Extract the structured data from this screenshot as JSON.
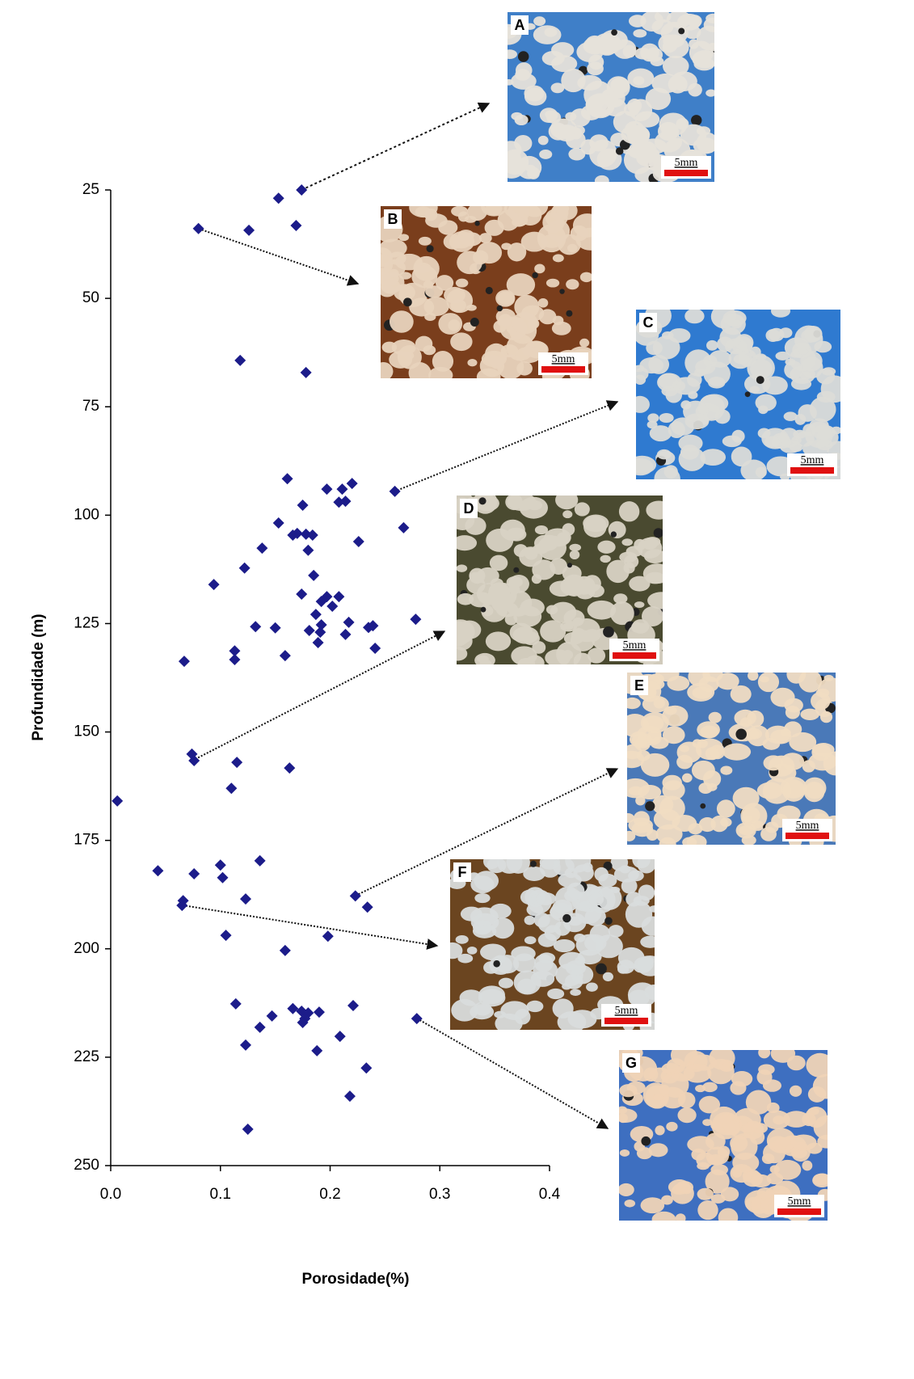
{
  "chart_data": {
    "type": "scatter",
    "x_label": "Porosidade(%)",
    "y_label": "Profundidade (m)",
    "color": "#1c1c8a",
    "y_inverted": true,
    "grid": false,
    "xlim": [
      0,
      0.4
    ],
    "xticks": [
      {
        "value": 0,
        "label": "0.0"
      },
      0.1,
      0.2,
      0.3,
      0.4
    ],
    "ylim": [
      25,
      250
    ],
    "yticks": [
      25,
      50,
      75,
      100,
      125,
      150,
      175,
      200,
      225,
      250
    ],
    "x": [
      0.174,
      0.153,
      0.169,
      0.126,
      0.08,
      0.118,
      0.178,
      0.161,
      0.197,
      0.22,
      0.211,
      0.259,
      0.214,
      0.208,
      0.175,
      0.153,
      0.267,
      0.17,
      0.178,
      0.166,
      0.184,
      0.226,
      0.138,
      0.18,
      0.122,
      0.185,
      0.094,
      0.174,
      0.197,
      0.208,
      0.192,
      0.202,
      0.187,
      0.217,
      0.235,
      0.239,
      0.278,
      0.132,
      0.15,
      0.192,
      0.181,
      0.191,
      0.214,
      0.189,
      0.113,
      0.159,
      0.113,
      0.241,
      0.067,
      0.074,
      0.076,
      0.115,
      0.163,
      0.11,
      0.006,
      0.136,
      0.1,
      0.043,
      0.076,
      0.102,
      0.223,
      0.123,
      0.066,
      0.065,
      0.234,
      0.105,
      0.198,
      0.159,
      0.114,
      0.221,
      0.166,
      0.174,
      0.18,
      0.19,
      0.147,
      0.279,
      0.177,
      0.175,
      0.136,
      0.209,
      0.123,
      0.188,
      0.233,
      0.218,
      0.125
    ],
    "y": [
      25.0,
      26.9,
      33.2,
      34.3,
      33.9,
      64.3,
      67.1,
      91.6,
      94.0,
      92.7,
      94.0,
      94.5,
      96.8,
      97.0,
      97.7,
      101.8,
      102.9,
      104.2,
      104.4,
      104.6,
      104.6,
      106.1,
      107.6,
      108.1,
      112.2,
      113.9,
      116.0,
      118.2,
      118.8,
      118.8,
      119.9,
      121.0,
      122.9,
      124.7,
      125.9,
      125.5,
      124.0,
      125.7,
      126.0,
      125.3,
      126.6,
      127.0,
      127.5,
      129.4,
      131.3,
      132.4,
      133.3,
      130.7,
      133.7,
      155.1,
      156.6,
      157.0,
      158.3,
      163.0,
      165.9,
      179.7,
      180.7,
      182.0,
      182.7,
      183.6,
      187.8,
      188.5,
      188.9,
      190.0,
      190.4,
      196.9,
      197.1,
      200.4,
      212.7,
      213.1,
      213.8,
      214.4,
      214.8,
      214.6,
      215.5,
      216.1,
      216.1,
      217.0,
      218.1,
      220.2,
      222.2,
      223.5,
      227.5,
      234.0,
      241.6
    ],
    "panels": [
      {
        "label": "A",
        "scale": "5mm"
      },
      {
        "label": "B",
        "scale": "5mm"
      },
      {
        "label": "C",
        "scale": "5mm"
      },
      {
        "label": "D",
        "scale": "5mm"
      },
      {
        "label": "E",
        "scale": "5mm"
      },
      {
        "label": "F",
        "scale": "5mm"
      },
      {
        "label": "G",
        "scale": "5mm"
      }
    ]
  }
}
